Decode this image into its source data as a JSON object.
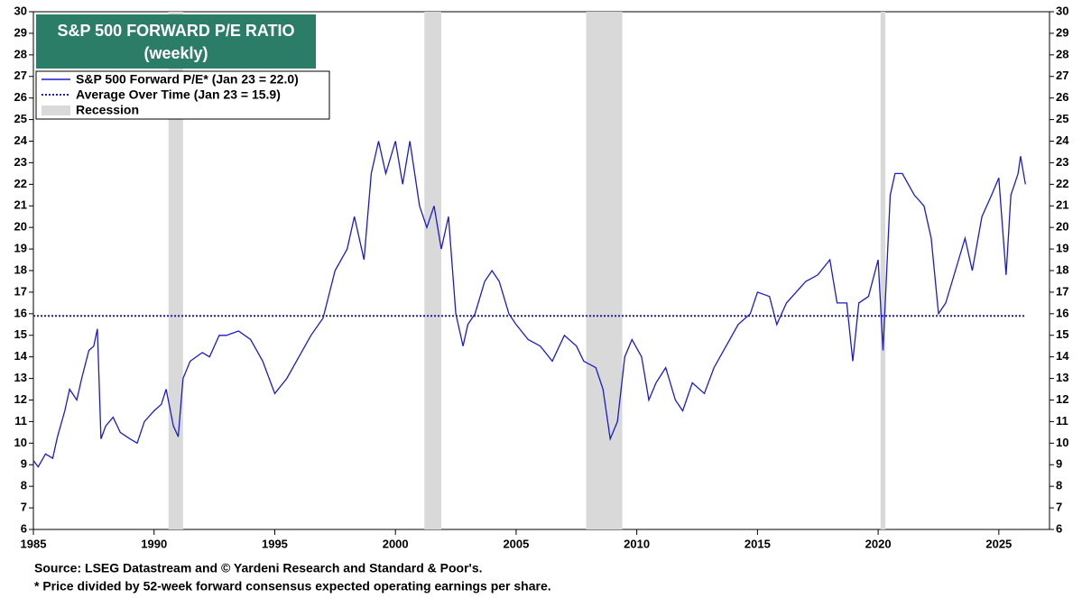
{
  "chart_data": {
    "type": "line",
    "title": "S&P 500 FORWARD P/E RATIO",
    "subtitle": "(weekly)",
    "source": "Source: LSEG Datastream and © Yardeni Research and Standard & Poor's.",
    "footnote": "* Price divided by 52-week forward consensus expected operating earnings per share.",
    "xlim": [
      1985,
      2027.1
    ],
    "xticks": [
      1985,
      1990,
      1995,
      2000,
      2005,
      2010,
      2015,
      2020,
      2025
    ],
    "ylim": [
      6,
      30
    ],
    "yticks": [
      6,
      7,
      8,
      9,
      10,
      11,
      12,
      13,
      14,
      15,
      16,
      17,
      18,
      19,
      20,
      21,
      22,
      23,
      24,
      25,
      26,
      27,
      28,
      29,
      30
    ],
    "series": [
      {
        "name": "S&P 500 Forward P/E* (Jan 23 = 22.0)",
        "color": "#1a1ad0",
        "x": [
          1985.0,
          1985.2,
          1985.5,
          1985.8,
          1986.0,
          1986.3,
          1986.5,
          1986.8,
          1987.0,
          1987.3,
          1987.5,
          1987.65,
          1987.8,
          1988.0,
          1988.3,
          1988.6,
          1989.0,
          1989.3,
          1989.6,
          1990.0,
          1990.3,
          1990.5,
          1990.8,
          1991.0,
          1991.2,
          1991.5,
          1992.0,
          1992.3,
          1992.7,
          1993.0,
          1993.5,
          1994.0,
          1994.5,
          1995.0,
          1995.5,
          1996.0,
          1996.5,
          1997.0,
          1997.5,
          1998.0,
          1998.3,
          1998.7,
          1999.0,
          1999.3,
          1999.6,
          2000.0,
          2000.3,
          2000.6,
          2001.0,
          2001.3,
          2001.6,
          2001.9,
          2002.2,
          2002.5,
          2002.8,
          2003.0,
          2003.3,
          2003.7,
          2004.0,
          2004.3,
          2004.7,
          2005.0,
          2005.5,
          2006.0,
          2006.5,
          2007.0,
          2007.5,
          2007.8,
          2008.3,
          2008.6,
          2008.9,
          2009.2,
          2009.5,
          2009.8,
          2010.2,
          2010.5,
          2010.8,
          2011.2,
          2011.6,
          2011.9,
          2012.3,
          2012.8,
          2013.2,
          2013.7,
          2014.2,
          2014.7,
          2015.0,
          2015.5,
          2015.8,
          2016.2,
          2016.6,
          2017.0,
          2017.5,
          2018.0,
          2018.3,
          2018.7,
          2018.95,
          2019.2,
          2019.6,
          2020.0,
          2020.2,
          2020.5,
          2020.7,
          2021.0,
          2021.5,
          2021.9,
          2022.2,
          2022.5,
          2022.8,
          2023.2,
          2023.6,
          2023.9,
          2024.3,
          2024.7,
          2025.0,
          2025.3,
          2025.5,
          2025.8,
          2025.9,
          2026.1
        ],
        "values": [
          9.2,
          8.9,
          9.5,
          9.3,
          10.3,
          11.5,
          12.5,
          12.0,
          13.0,
          14.3,
          14.5,
          15.3,
          10.2,
          10.8,
          11.2,
          10.5,
          10.2,
          10.0,
          11.0,
          11.5,
          11.8,
          12.5,
          10.8,
          10.3,
          13.0,
          13.8,
          14.2,
          14.0,
          15.0,
          15.0,
          15.2,
          14.8,
          13.8,
          12.3,
          13.0,
          14.0,
          15.0,
          15.8,
          18.0,
          19.0,
          20.5,
          18.5,
          22.5,
          24.0,
          22.5,
          24.0,
          22.0,
          24.0,
          21.0,
          20.0,
          21.0,
          19.0,
          20.5,
          16.0,
          14.5,
          15.5,
          16.0,
          17.5,
          18.0,
          17.5,
          16.0,
          15.5,
          14.8,
          14.5,
          13.8,
          15.0,
          14.5,
          13.8,
          13.5,
          12.5,
          10.2,
          11.0,
          14.0,
          14.8,
          14.0,
          12.0,
          12.8,
          13.5,
          12.0,
          11.5,
          12.8,
          12.3,
          13.5,
          14.5,
          15.5,
          16.0,
          17.0,
          16.8,
          15.5,
          16.5,
          17.0,
          17.5,
          17.8,
          18.5,
          16.5,
          16.5,
          13.8,
          16.5,
          16.8,
          18.5,
          14.3,
          21.5,
          22.5,
          22.5,
          21.5,
          21.0,
          19.5,
          16.0,
          16.5,
          18.0,
          19.5,
          18.0,
          20.5,
          21.5,
          22.3,
          17.8,
          21.5,
          22.5,
          23.3,
          22.0
        ]
      },
      {
        "name": "Average Over Time (Jan 23 = 15.9)",
        "color": "#1a1ad0",
        "value": 15.9
      }
    ],
    "recession": {
      "name": "Recession",
      "color": "#d9d9d9",
      "periods": [
        [
          1990.6,
          1991.2
        ],
        [
          2001.2,
          2001.9
        ],
        [
          2007.9,
          2009.4
        ],
        [
          2020.1,
          2020.3
        ]
      ]
    }
  }
}
